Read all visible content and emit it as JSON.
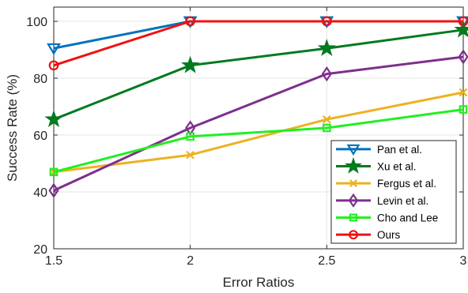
{
  "chart_data": {
    "type": "line",
    "xlabel": "Error Ratios",
    "ylabel": "Success Rate (%)",
    "xlim": [
      1.5,
      3
    ],
    "ylim": [
      20,
      105
    ],
    "x_ticks": [
      "1.5",
      "2",
      "2.5",
      "3"
    ],
    "y_ticks": [
      "20",
      "40",
      "60",
      "80",
      "100"
    ],
    "x": [
      1.5,
      2,
      2.5,
      3
    ],
    "grid": true,
    "legend_position": "bottom-right",
    "series": [
      {
        "name": "Pan et al.",
        "color": "#0072BD",
        "marker": "triangle-down",
        "values": [
          90.5,
          100,
          100,
          100
        ]
      },
      {
        "name": "Xu et al.",
        "color": "#007A1F",
        "marker": "star",
        "values": [
          65.5,
          84.5,
          90.5,
          97
        ]
      },
      {
        "name": "Fergus et al.",
        "color": "#EDB120",
        "marker": "x",
        "values": [
          47,
          53,
          65.5,
          75
        ]
      },
      {
        "name": "Levin et al.",
        "color": "#7E2F8E",
        "marker": "diamond",
        "values": [
          40.5,
          62.5,
          81.5,
          87.5
        ]
      },
      {
        "name": "Cho and Lee",
        "color": "#20F020",
        "marker": "square",
        "values": [
          47,
          59.5,
          62.5,
          69
        ]
      },
      {
        "name": "Ours",
        "color": "#F01010",
        "marker": "circle",
        "values": [
          84.5,
          100,
          100,
          100
        ]
      }
    ]
  }
}
